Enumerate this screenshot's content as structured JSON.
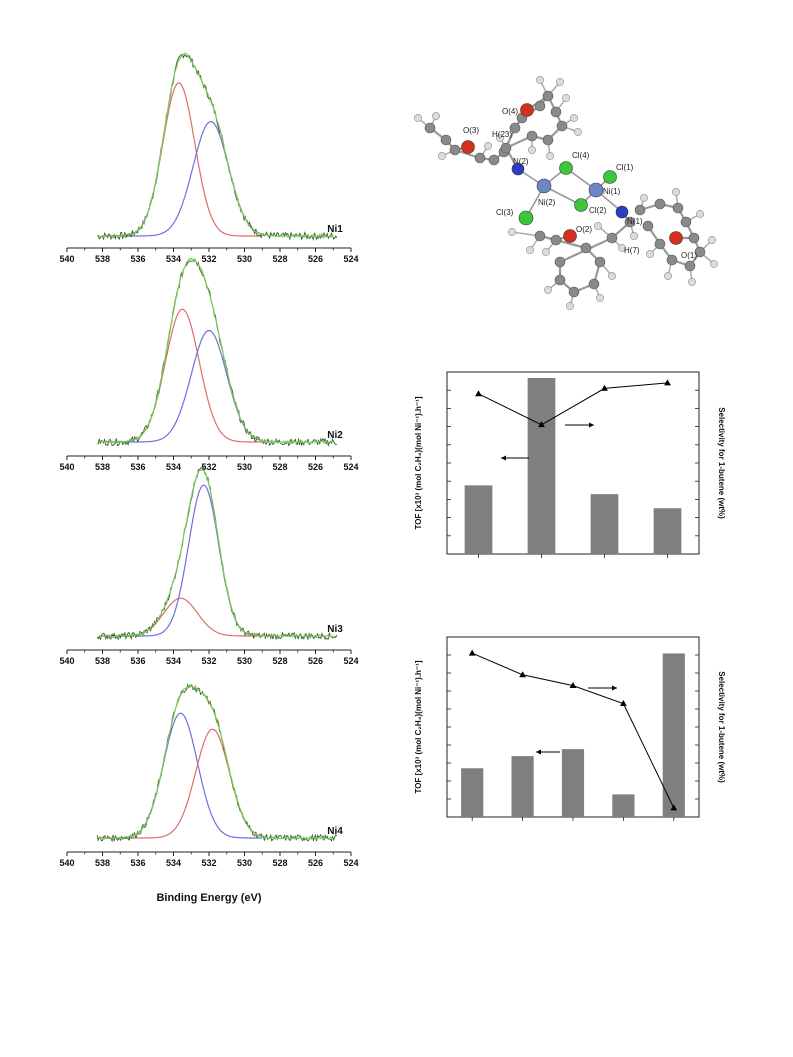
{
  "chart_data": [
    {
      "type": "line",
      "label": "Ni1",
      "x_axis_label": "",
      "xlim": [
        540,
        524
      ],
      "x_ticks": [
        "540",
        "538",
        "536",
        "534",
        "532",
        "530",
        "528",
        "526",
        "524"
      ],
      "components": [
        {
          "color": "#e06c6c",
          "center": 533.7,
          "sigma": 0.9,
          "amplitude": 0.87
        },
        {
          "color": "#6f6fe0",
          "center": 531.9,
          "sigma": 1.0,
          "amplitude": 0.65
        }
      ],
      "colors": {
        "data": "#3a5a2a",
        "fit": "#7acb5a"
      }
    },
    {
      "type": "line",
      "label": "Ni2",
      "x_axis_label": "",
      "xlim": [
        540,
        524
      ],
      "x_ticks": [
        "540",
        "538",
        "536",
        "534",
        "532",
        "530",
        "528",
        "526",
        "524"
      ],
      "components": [
        {
          "color": "#e06c6c",
          "center": 533.5,
          "sigma": 0.95,
          "amplitude": 0.75
        },
        {
          "color": "#6f6fe0",
          "center": 532.0,
          "sigma": 1.0,
          "amplitude": 0.63
        }
      ],
      "colors": {
        "data": "#3a5a2a",
        "fit": "#7acb5a"
      }
    },
    {
      "type": "line",
      "label": "Ni3",
      "x_axis_label": "",
      "xlim": [
        540,
        524
      ],
      "x_ticks": [
        "540",
        "538",
        "536",
        "534",
        "532",
        "530",
        "528",
        "526",
        "524"
      ],
      "components": [
        {
          "color": "#e06c6c",
          "center": 533.6,
          "sigma": 0.95,
          "amplitude": 0.23
        },
        {
          "color": "#6f6fe0",
          "center": 532.3,
          "sigma": 0.85,
          "amplitude": 0.92
        }
      ],
      "colors": {
        "data": "#3a5a2a",
        "fit": "#7acb5a"
      }
    },
    {
      "type": "line",
      "label": "Ni4",
      "x_axis_label": "Binding Energy (eV)",
      "xlim": [
        540,
        524
      ],
      "x_ticks": [
        "540",
        "538",
        "536",
        "534",
        "532",
        "530",
        "528",
        "526",
        "524"
      ],
      "components": [
        {
          "color": "#6f6fe0",
          "center": 533.6,
          "sigma": 0.95,
          "amplitude": 0.78
        },
        {
          "color": "#e06c6c",
          "center": 531.8,
          "sigma": 0.95,
          "amplitude": 0.68
        }
      ],
      "colors": {
        "data": "#3a5a2a",
        "fit": "#7acb5a"
      }
    },
    {
      "type": "bar",
      "ylabel": "TOF [x10³ (mol C₂H₄)(mol Ni⁻¹).h⁻¹]",
      "y2label": "Selectivity for 1-butene (wt%)",
      "bars": [
        0.39,
        1.0,
        0.34,
        0.26
      ],
      "line": [
        0.88,
        0.71,
        0.91,
        0.94
      ],
      "colors": {
        "bar": "#7f7f7f",
        "line": "#000000"
      }
    },
    {
      "type": "bar",
      "ylabel": "TOF [x10³ (mol C₂H₄)(mol Ni⁻¹).h⁻¹]",
      "y2label": "Selectivity for 1-butene (wt%)",
      "bars": [
        0.28,
        0.35,
        0.39,
        0.13,
        0.94
      ],
      "line": [
        0.91,
        0.79,
        0.73,
        0.63,
        0.05
      ],
      "colors": {
        "bar": "#7f7f7f",
        "line": "#000000"
      }
    }
  ],
  "molecule": {
    "labels": [
      "O(4)",
      "O(3)",
      "H(23)",
      "N(2)",
      "Cl(4)",
      "Cl(1)",
      "Ni(1)",
      "Ni(2)",
      "Cl(2)",
      "N(1)",
      "Cl(3)",
      "O(2)",
      "H(7)",
      "O(1)"
    ]
  }
}
